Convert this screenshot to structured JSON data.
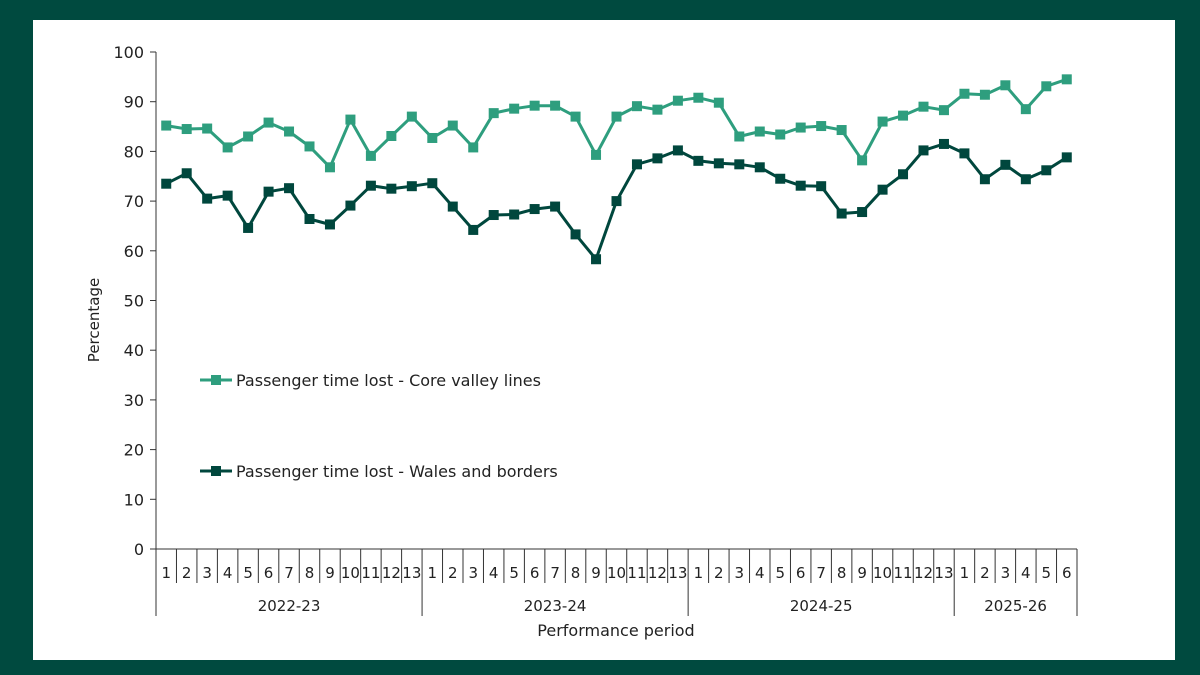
{
  "chart_data": {
    "type": "line",
    "xlabel": "Performance period",
    "ylabel": "Percentage",
    "ylim": [
      0,
      100
    ],
    "yticks": [
      "0",
      "10",
      "20",
      "30",
      "40",
      "50",
      "60",
      "70",
      "80",
      "90",
      "100"
    ],
    "grid": false,
    "legend_position": "center-left",
    "years": [
      {
        "label": "2022-23",
        "periods": [
          "1",
          "2",
          "3",
          "4",
          "5",
          "6",
          "7",
          "8",
          "9",
          "10",
          "11",
          "12",
          "13"
        ]
      },
      {
        "label": "2023-24",
        "periods": [
          "1",
          "2",
          "3",
          "4",
          "5",
          "6",
          "7",
          "8",
          "9",
          "10",
          "11",
          "12",
          "13"
        ]
      },
      {
        "label": "2024-25",
        "periods": [
          "1",
          "2",
          "3",
          "4",
          "5",
          "6",
          "7",
          "8",
          "9",
          "10",
          "11",
          "12",
          "13"
        ]
      },
      {
        "label": "2025-26",
        "periods": [
          "1",
          "2",
          "3",
          "4",
          "5",
          "6"
        ]
      }
    ],
    "series": [
      {
        "name": "Passenger time lost - Core valley lines",
        "color": "#2e9e7e",
        "values": [
          85.2,
          84.5,
          84.6,
          80.8,
          83.0,
          85.8,
          84.0,
          81.0,
          76.8,
          86.4,
          79.1,
          83.1,
          87.0,
          82.7,
          85.2,
          80.8,
          87.7,
          88.6,
          89.2,
          89.2,
          87.0,
          79.3,
          87.0,
          89.1,
          88.4,
          90.2,
          90.8,
          89.8,
          83.0,
          84.0,
          83.4,
          84.8,
          85.1,
          84.3,
          78.2,
          86.0,
          87.2,
          89.0,
          88.3,
          91.6,
          91.4,
          93.3,
          88.5,
          93.1,
          94.5
        ]
      },
      {
        "name": "Passenger time lost - Wales and borders",
        "color": "#00473d",
        "values": [
          73.5,
          75.6,
          70.5,
          71.1,
          64.6,
          71.9,
          72.6,
          66.4,
          65.3,
          69.1,
          73.1,
          72.5,
          73.0,
          73.6,
          68.9,
          64.2,
          67.2,
          67.3,
          68.4,
          68.9,
          63.3,
          58.3,
          70.0,
          77.4,
          78.6,
          80.2,
          78.1,
          77.6,
          77.4,
          76.8,
          74.5,
          73.1,
          73.0,
          67.5,
          67.8,
          72.3,
          75.4,
          80.2,
          81.5,
          79.6,
          74.4,
          77.3,
          74.4,
          76.2,
          78.8
        ]
      }
    ]
  }
}
